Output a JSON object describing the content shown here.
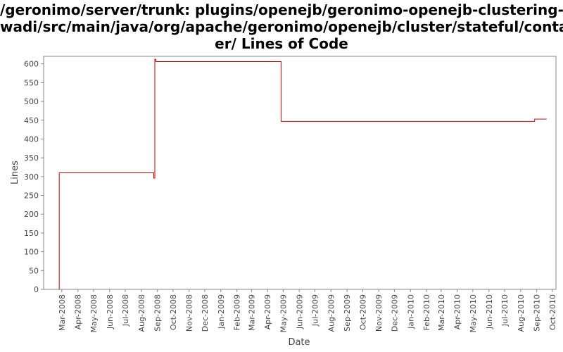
{
  "title_lines": [
    "/geronimo/server/trunk: plugins/openejb/geronimo-openejb-clustering-",
    "wadi/src/main/java/org/apache/geronimo/openejb/cluster/stateful/contain",
    "er/ Lines of Code"
  ],
  "chart_data": {
    "type": "line",
    "title": "/geronimo/server/trunk: plugins/openejb/geronimo-openejb-clustering-wadi/src/main/java/org/apache/geronimo/openejb/cluster/stateful/container/ Lines of Code",
    "xlabel": "Date",
    "ylabel": "Lines",
    "ylim": [
      0,
      620
    ],
    "xlim": [
      "2008-01-26",
      "2010-10-08"
    ],
    "yticks": [
      0,
      50,
      100,
      150,
      200,
      250,
      300,
      350,
      400,
      450,
      500,
      550,
      600
    ],
    "xticks": [
      "Mar-2008",
      "Apr-2008",
      "May-2008",
      "Jun-2008",
      "Jul-2008",
      "Aug-2008",
      "Sep-2008",
      "Oct-2008",
      "Nov-2008",
      "Dec-2008",
      "Jan-2009",
      "Feb-2009",
      "Mar-2009",
      "Apr-2009",
      "May-2009",
      "Jun-2009",
      "Jul-2009",
      "Aug-2009",
      "Sep-2009",
      "Oct-2009",
      "Nov-2009",
      "Dec-2009",
      "Jan-2010",
      "Feb-2010",
      "Mar-2010",
      "Apr-2010",
      "May-2010",
      "Jun-2010",
      "Jul-2010",
      "Aug-2010",
      "Sep-2010",
      "Oct-2010"
    ],
    "grid": false,
    "line_color": "#cc0000",
    "series": [
      {
        "step": true,
        "points": [
          [
            "2008-02-24",
            0
          ],
          [
            "2008-02-25",
            310
          ],
          [
            "2008-08-24",
            310
          ],
          [
            "2008-08-25",
            296
          ],
          [
            "2008-08-26",
            296
          ],
          [
            "2008-08-27",
            612
          ],
          [
            "2008-08-29",
            606
          ],
          [
            "2009-04-26",
            606
          ],
          [
            "2009-04-27",
            447
          ],
          [
            "2010-08-27",
            447
          ],
          [
            "2010-08-28",
            453
          ],
          [
            "2010-09-20",
            453
          ]
        ]
      }
    ]
  }
}
